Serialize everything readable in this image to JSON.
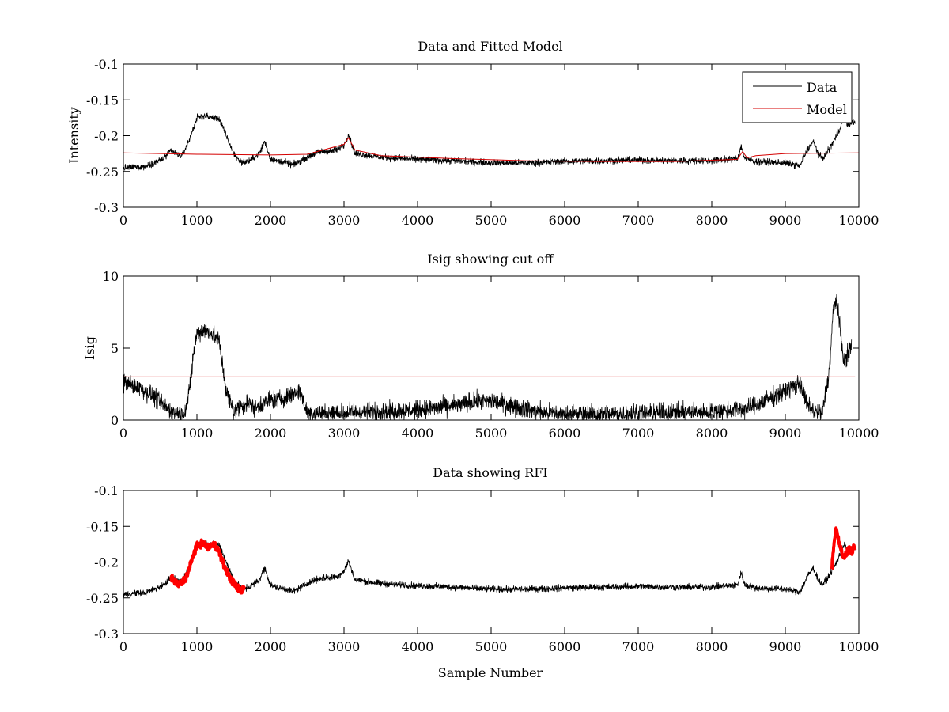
{
  "colors": {
    "data": "#000000",
    "model": "#d40000",
    "rfi": "#ff0000",
    "cutoff": "#d40000"
  },
  "chart_data": [
    {
      "id": "top",
      "type": "line",
      "title": "Data and Fitted Model",
      "xlabel": "",
      "ylabel": "Intensity",
      "xlim": [
        0,
        10000
      ],
      "ylim": [
        -0.3,
        -0.1
      ],
      "xticks": [
        0,
        1000,
        2000,
        3000,
        4000,
        5000,
        6000,
        7000,
        8000,
        9000,
        10000
      ],
      "xtick_labels": [
        "0",
        "1000",
        "2000",
        "3000",
        "4000",
        "5000",
        "6000",
        "7000",
        "8000",
        "9000",
        "10000"
      ],
      "yticks": [
        -0.3,
        -0.25,
        -0.2,
        -0.15,
        -0.1
      ],
      "ytick_labels": [
        "-0.3",
        "-0.25",
        "-0.2",
        "-0.15",
        "-0.1"
      ],
      "legend": {
        "position": "top-right",
        "entries": [
          "Data",
          "Model"
        ]
      },
      "series": [
        {
          "name": "Data",
          "color": "#000000",
          "noise": 0.004,
          "x": [
            0,
            300,
            550,
            650,
            720,
            800,
            900,
            1000,
            1100,
            1200,
            1300,
            1400,
            1500,
            1600,
            1700,
            1850,
            1920,
            2000,
            2100,
            2200,
            2300,
            2400,
            2500,
            2600,
            2700,
            2800,
            2900,
            3000,
            3060,
            3150,
            3300,
            3500,
            4000,
            4500,
            5000,
            5500,
            6000,
            6500,
            7000,
            7500,
            8000,
            8350,
            8400,
            8450,
            8600,
            9000,
            9200,
            9300,
            9380,
            9450,
            9500,
            9550,
            9600,
            9700,
            9800,
            9850,
            9950
          ],
          "y": [
            -0.245,
            -0.243,
            -0.232,
            -0.22,
            -0.226,
            -0.228,
            -0.205,
            -0.175,
            -0.172,
            -0.175,
            -0.176,
            -0.2,
            -0.225,
            -0.237,
            -0.236,
            -0.225,
            -0.208,
            -0.232,
            -0.236,
            -0.237,
            -0.241,
            -0.236,
            -0.23,
            -0.225,
            -0.222,
            -0.222,
            -0.22,
            -0.213,
            -0.198,
            -0.225,
            -0.227,
            -0.23,
            -0.233,
            -0.235,
            -0.238,
            -0.238,
            -0.236,
            -0.235,
            -0.234,
            -0.235,
            -0.235,
            -0.232,
            -0.215,
            -0.232,
            -0.236,
            -0.238,
            -0.242,
            -0.22,
            -0.208,
            -0.225,
            -0.232,
            -0.226,
            -0.218,
            -0.2,
            -0.175,
            -0.185,
            -0.18
          ]
        },
        {
          "name": "Model",
          "color": "#d40000",
          "noise": 0,
          "x": [
            0,
            1000,
            2000,
            2500,
            3000,
            3060,
            3150,
            3500,
            4500,
            5500,
            6500,
            7500,
            8350,
            8420,
            8480,
            8600,
            9000,
            10000
          ],
          "y": [
            -0.224,
            -0.226,
            -0.227,
            -0.226,
            -0.212,
            -0.203,
            -0.22,
            -0.228,
            -0.232,
            -0.235,
            -0.236,
            -0.236,
            -0.233,
            -0.222,
            -0.231,
            -0.228,
            -0.225,
            -0.224
          ]
        }
      ]
    },
    {
      "id": "middle",
      "type": "line",
      "title": "Isig showing cut off",
      "xlabel": "",
      "ylabel": "Isig",
      "xlim": [
        0,
        10000
      ],
      "ylim": [
        0,
        10
      ],
      "xticks": [
        0,
        1000,
        2000,
        3000,
        4000,
        5000,
        6000,
        7000,
        8000,
        9000,
        10000
      ],
      "xtick_labels": [
        "0",
        "1000",
        "2000",
        "3000",
        "4000",
        "5000",
        "6000",
        "7000",
        "8000",
        "9000",
        "10000"
      ],
      "yticks": [
        0,
        5,
        10
      ],
      "ytick_labels": [
        "0",
        "5",
        "10"
      ],
      "series": [
        {
          "name": "Isig",
          "color": "#000000",
          "noise": 0.55,
          "floor": 0,
          "x": [
            0,
            200,
            400,
            500,
            600,
            700,
            800,
            850,
            900,
            950,
            1000,
            1100,
            1200,
            1300,
            1400,
            1500,
            1600,
            1700,
            1800,
            1900,
            2000,
            2100,
            2200,
            2300,
            2400,
            2500,
            3000,
            3500,
            4000,
            4500,
            4800,
            5000,
            5300,
            5600,
            6000,
            6500,
            7000,
            7500,
            8000,
            8500,
            8800,
            9000,
            9200,
            9300,
            9400,
            9500,
            9600,
            9650,
            9700,
            9750,
            9800,
            9900
          ],
          "y": [
            2.6,
            2.3,
            1.7,
            1.2,
            0.8,
            0.5,
            0.4,
            0.8,
            2.0,
            4.5,
            6.0,
            6.3,
            6.0,
            5.5,
            2.0,
            0.6,
            1.0,
            1.2,
            0.8,
            1.2,
            1.4,
            1.4,
            1.6,
            1.8,
            2.0,
            0.5,
            0.5,
            0.6,
            0.7,
            1.0,
            1.3,
            1.3,
            1.0,
            0.6,
            0.4,
            0.4,
            0.5,
            0.5,
            0.6,
            0.8,
            1.5,
            2.0,
            2.6,
            1.0,
            0.6,
            0.4,
            3.5,
            7.5,
            8.5,
            6.0,
            4.0,
            5.2
          ]
        },
        {
          "name": "Cut off",
          "color": "#d40000",
          "noise": 0,
          "x": [
            0,
            9950
          ],
          "y": [
            3.0,
            3.0
          ]
        }
      ]
    },
    {
      "id": "bottom",
      "type": "line",
      "title": "Data showing RFI",
      "xlabel": "Sample Number",
      "ylabel": "",
      "xlim": [
        0,
        10000
      ],
      "ylim": [
        -0.3,
        -0.1
      ],
      "xticks": [
        0,
        1000,
        2000,
        3000,
        4000,
        5000,
        6000,
        7000,
        8000,
        9000,
        10000
      ],
      "xtick_labels": [
        "0",
        "1000",
        "2000",
        "3000",
        "4000",
        "5000",
        "6000",
        "7000",
        "8000",
        "9000",
        "10000"
      ],
      "yticks": [
        -0.3,
        -0.25,
        -0.2,
        -0.15,
        -0.1
      ],
      "ytick_labels": [
        "-0.3",
        "-0.25",
        "-0.2",
        "-0.15",
        "-0.1"
      ],
      "series": [
        {
          "name": "Data",
          "color": "#000000",
          "noise": 0.004,
          "x": [
            0,
            300,
            550,
            650,
            720,
            800,
            900,
            1000,
            1100,
            1200,
            1300,
            1400,
            1500,
            1600,
            1700,
            1850,
            1920,
            2000,
            2100,
            2200,
            2300,
            2400,
            2500,
            2600,
            2700,
            2800,
            2900,
            3000,
            3060,
            3150,
            3300,
            3500,
            4000,
            4500,
            5000,
            5500,
            6000,
            6500,
            7000,
            7500,
            8000,
            8350,
            8400,
            8450,
            8600,
            9000,
            9200,
            9300,
            9380,
            9450,
            9500,
            9550,
            9600,
            9700,
            9800,
            9850,
            9950
          ],
          "y": [
            -0.245,
            -0.243,
            -0.232,
            -0.22,
            -0.226,
            -0.228,
            -0.205,
            -0.175,
            -0.172,
            -0.175,
            -0.176,
            -0.2,
            -0.225,
            -0.237,
            -0.236,
            -0.225,
            -0.208,
            -0.232,
            -0.236,
            -0.237,
            -0.241,
            -0.236,
            -0.23,
            -0.225,
            -0.222,
            -0.222,
            -0.22,
            -0.213,
            -0.198,
            -0.225,
            -0.227,
            -0.23,
            -0.233,
            -0.235,
            -0.238,
            -0.238,
            -0.236,
            -0.235,
            -0.234,
            -0.235,
            -0.235,
            -0.232,
            -0.215,
            -0.232,
            -0.236,
            -0.238,
            -0.242,
            -0.22,
            -0.208,
            -0.225,
            -0.232,
            -0.226,
            -0.218,
            -0.2,
            -0.175,
            -0.185,
            -0.18
          ]
        },
        {
          "name": "RFI",
          "color": "#ff0000",
          "noise": 0.004,
          "marker": true,
          "segments": [
            {
              "x": [
                650,
                700,
                750,
                800,
                850,
                900,
                950,
                1000,
                1050,
                1100,
                1150,
                1200,
                1250,
                1300,
                1350,
                1400,
                1450,
                1500,
                1550,
                1600,
                1650
              ],
              "y": [
                -0.222,
                -0.227,
                -0.232,
                -0.228,
                -0.222,
                -0.208,
                -0.19,
                -0.178,
                -0.174,
                -0.175,
                -0.18,
                -0.177,
                -0.176,
                -0.185,
                -0.2,
                -0.212,
                -0.222,
                -0.23,
                -0.236,
                -0.24,
                -0.235
              ]
            },
            {
              "x": [
                9630,
                9660,
                9690,
                9720,
                9750,
                9780,
                9810,
                9840,
                9870,
                9900,
                9950
              ],
              "y": [
                -0.21,
                -0.175,
                -0.155,
                -0.165,
                -0.18,
                -0.19,
                -0.192,
                -0.188,
                -0.182,
                -0.185,
                -0.18
              ]
            }
          ]
        }
      ]
    }
  ]
}
